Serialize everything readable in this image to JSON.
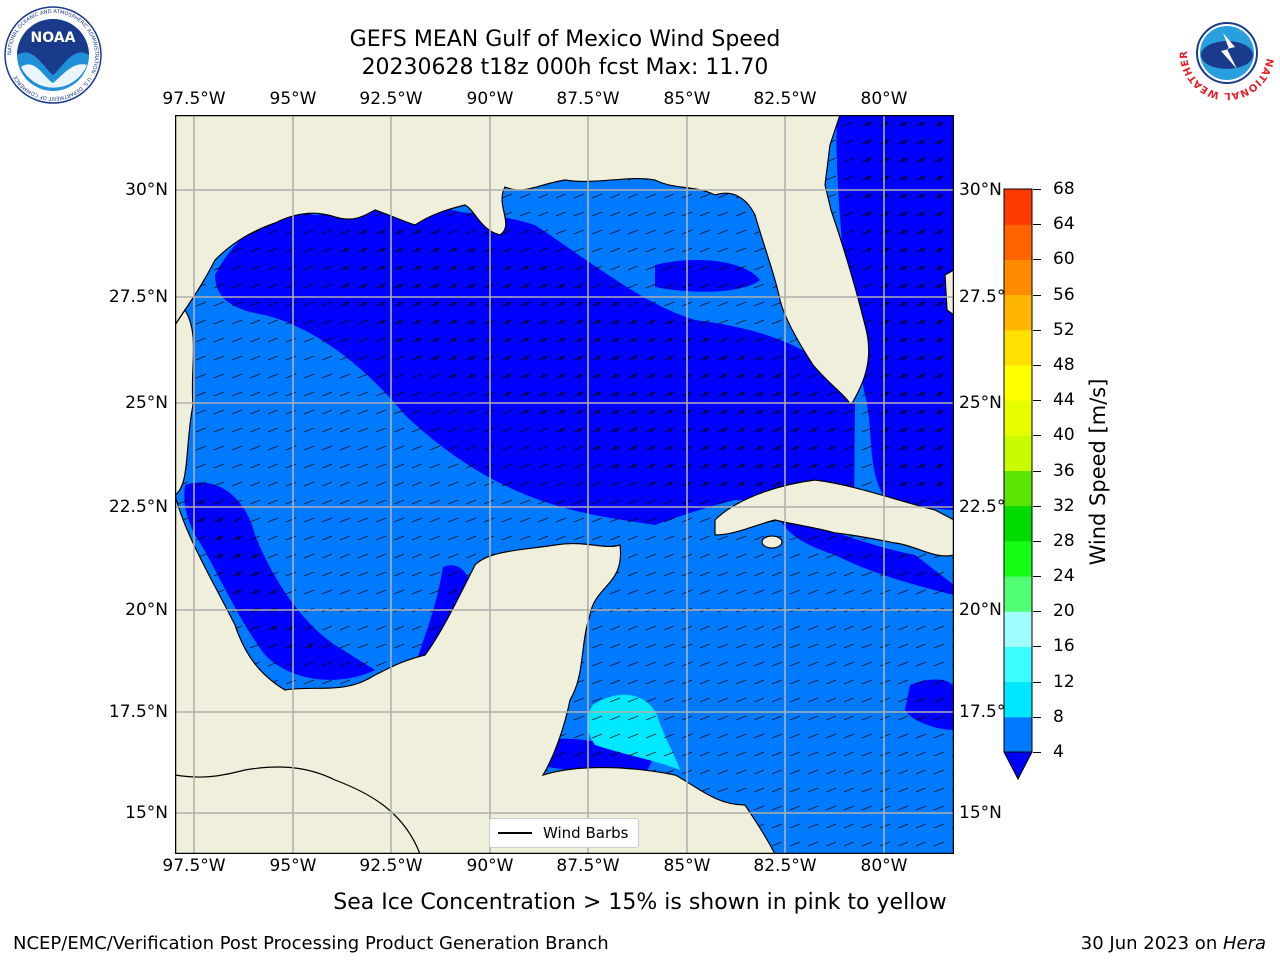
{
  "title": {
    "line1": "GEFS MEAN Gulf of Mexico Wind Speed",
    "line2": "20230628 t18z 000h fcst   Max: 11.70"
  },
  "map": {
    "lon_labels": [
      "97.5°W",
      "95°W",
      "92.5°W",
      "90°W",
      "87.5°W",
      "85°W",
      "82.5°W",
      "80°W"
    ],
    "lat_labels": [
      "30°N",
      "27.5°N",
      "25°N",
      "22.5°N",
      "20°N",
      "17.5°N",
      "15°N"
    ],
    "land_color": "#efefdc",
    "grid_color": "#b0b0b0"
  },
  "legend": {
    "label": "Wind Barbs"
  },
  "colorbar": {
    "label": "Wind Speed [m/s]",
    "ticks": [
      "4",
      "8",
      "12",
      "16",
      "20",
      "24",
      "28",
      "32",
      "36",
      "40",
      "44",
      "48",
      "52",
      "56",
      "60",
      "64",
      "68"
    ],
    "colors": [
      "#007aff",
      "#00e8ff",
      "#3cfcff",
      "#a0fdff",
      "#52ff74",
      "#14ff14",
      "#00dc00",
      "#5ae400",
      "#c8fa00",
      "#e6fd00",
      "#ffff00",
      "#ffe100",
      "#ffb600",
      "#ff8c00",
      "#ff6400",
      "#ff3a00"
    ],
    "extend_color": "#0000ff"
  },
  "chart_data": {
    "type": "heatmap",
    "title": "GEFS MEAN Gulf of Mexico Wind Speed",
    "subtitle": "20230628 t18z 000h fcst   Max: 11.70",
    "variable": "Wind Speed [m/s]",
    "max_value": 11.7,
    "levels": [
      4,
      8,
      12,
      16,
      20,
      24,
      28,
      32,
      36,
      40,
      44,
      48,
      52,
      56,
      60,
      64,
      68
    ],
    "lon_range": [
      -98,
      -78
    ],
    "lat_range": [
      14,
      31.5
    ],
    "overlay": "Wind Barbs"
  },
  "footnote": "Sea Ice Concentration > 15% is shown in pink to yellow",
  "credit_left": "NCEP/EMC/Verification Post Processing Product Generation Branch",
  "credit_right_date": "30 Jun 2023 on ",
  "credit_right_machine": "Hera",
  "logos": {
    "noaa": "NOAA",
    "noaa_ring": "NATIONAL OCEANIC AND ATMOSPHERIC ADMINISTRATION · U.S. DEPARTMENT OF COMMERCE",
    "nws_ring": "NATIONAL WEATHER SERVICE"
  }
}
